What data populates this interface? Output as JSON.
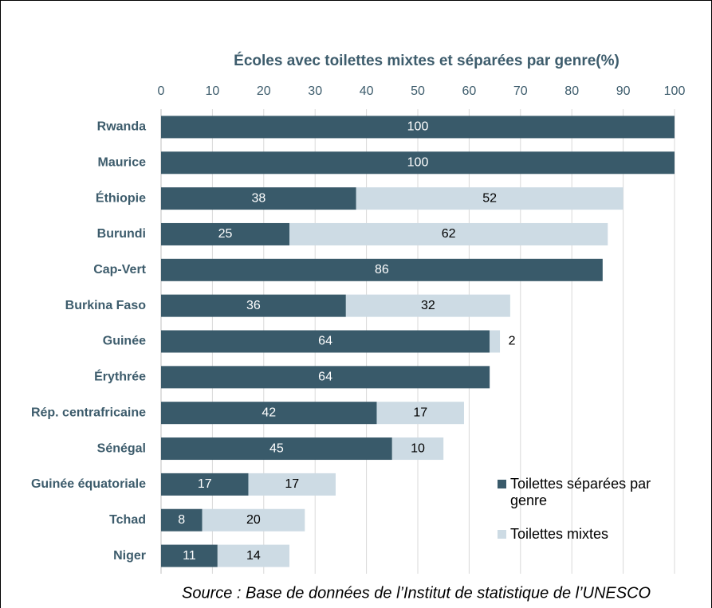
{
  "chart_data": {
    "type": "stacked-bar-horizontal",
    "title": "Écoles avec toilettes mixtes et séparées par genre(%)",
    "source": "Source : Base de données de l’Institut de statistique de l’UNESCO",
    "categories": [
      "Rwanda",
      "Maurice",
      "Éthiopie",
      "Burundi",
      "Cap-Vert",
      "Burkina Faso",
      "Guinée",
      "Érythrée",
      "Rép. centrafricaine",
      "Sénégal",
      "Guinée équatoriale",
      "Tchad",
      "Niger"
    ],
    "series": [
      {
        "name": "Toilettes séparées par genre",
        "color": "#395a6a",
        "values": [
          100,
          100,
          38,
          25,
          86,
          36,
          64,
          64,
          42,
          45,
          17,
          8,
          11
        ]
      },
      {
        "name": "Toilettes mixtes",
        "color": "#cddbe4",
        "values": [
          null,
          null,
          52,
          62,
          null,
          32,
          2,
          null,
          17,
          10,
          17,
          20,
          14
        ]
      }
    ],
    "xlim": [
      0,
      100
    ],
    "xticks": [
      0,
      10,
      20,
      30,
      40,
      50,
      60,
      70,
      80,
      90,
      100
    ],
    "grid": true
  }
}
